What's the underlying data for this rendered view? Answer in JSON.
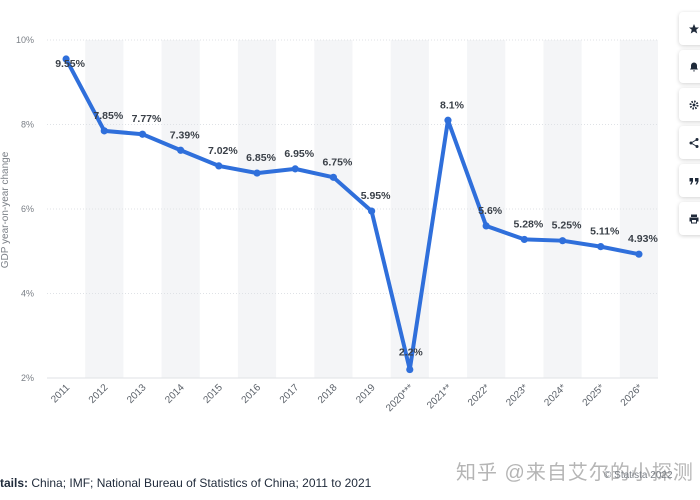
{
  "chart_data": {
    "type": "line",
    "ylabel": "GDP year-on-year change",
    "ylim": [
      2,
      10
    ],
    "yticks": [
      "2%",
      "4%",
      "6%",
      "8%",
      "10%"
    ],
    "ytick_values": [
      2,
      4,
      6,
      8,
      10
    ],
    "grid": true,
    "categories": [
      "2011",
      "2012",
      "2013",
      "2014",
      "2015",
      "2016",
      "2017",
      "2018",
      "2019",
      "2020***",
      "2021**",
      "2022*",
      "2023*",
      "2024*",
      "2025*",
      "2026*"
    ],
    "series": [
      {
        "values": [
          9.55,
          7.85,
          7.77,
          7.39,
          7.02,
          6.85,
          6.95,
          6.75,
          5.95,
          2.2,
          8.1,
          5.6,
          5.28,
          5.25,
          5.11,
          4.93
        ],
        "labels": [
          "9.55%",
          "7.85%",
          "7.77%",
          "7.39%",
          "7.02%",
          "6.85%",
          "6.95%",
          "6.75%",
          "5.95%",
          "2.2%",
          "8.1%",
          "5.6%",
          "5.28%",
          "5.25%",
          "5.11%",
          "4.93%"
        ],
        "color": "#2f6fdb"
      }
    ]
  },
  "footer": {
    "details_label": "tails:",
    "details_text": " China; IMF; National Bureau of Statistics of China; 2011 to 2021",
    "copyright": "© Statista 2022",
    "watermark": "知乎 @来自艾尔的小探测"
  },
  "toolbar": {
    "items": [
      "star-icon",
      "bell-icon",
      "gear-icon",
      "share-icon",
      "quote-icon",
      "print-icon"
    ]
  },
  "colors": {
    "line": "#2f6fdb",
    "band": "#f4f5f7",
    "grid": "#dfe2e6",
    "text": "#1f2a3a"
  }
}
